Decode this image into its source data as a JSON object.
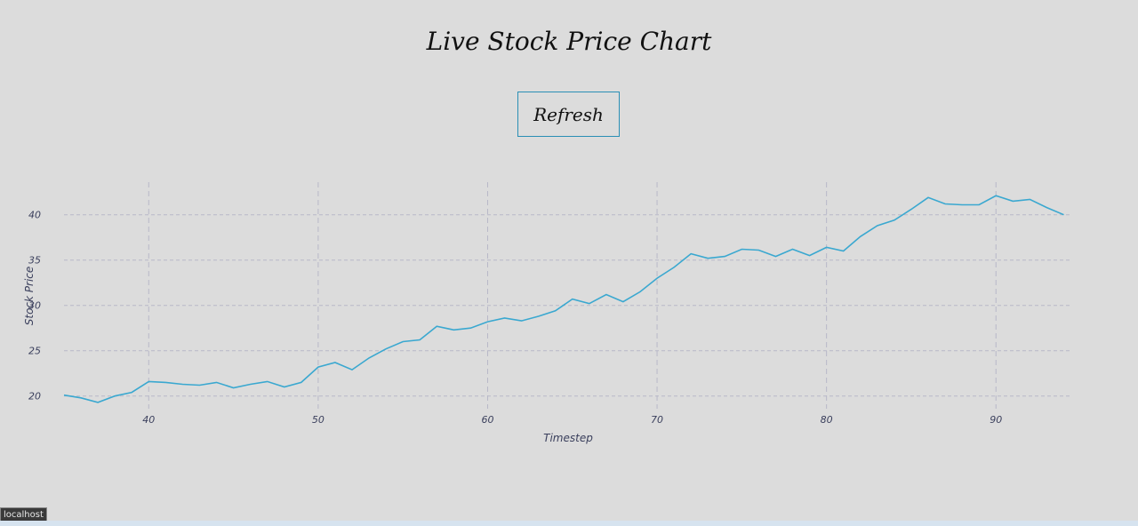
{
  "page": {
    "title": "Live Stock Price Chart",
    "refresh_label": "Refresh"
  },
  "status_bar": {
    "url_tooltip": "localhost"
  },
  "colors": {
    "line": "#3aa8d0",
    "grid": "#b8b8c8",
    "axis_text": "#3a3f5c",
    "button_border": "#2a8fb5"
  },
  "chart_data": {
    "type": "line",
    "title": "",
    "xlabel": "Timestep",
    "ylabel": "Stock Price",
    "xlim": [
      35,
      94.5
    ],
    "ylim": [
      18.6,
      43.6
    ],
    "x_ticks": [
      40,
      50,
      60,
      70,
      80,
      90
    ],
    "y_ticks": [
      20,
      25,
      30,
      35,
      40
    ],
    "grid": true,
    "series": [
      {
        "x": [
          35,
          36,
          37,
          38,
          39,
          40,
          41,
          42,
          43,
          44,
          45,
          46,
          47,
          48,
          49,
          50,
          51,
          52,
          53,
          54,
          55,
          56,
          57,
          58,
          59,
          60,
          61,
          62,
          63,
          64,
          65,
          66,
          67,
          68,
          69,
          70,
          71,
          72,
          73,
          74,
          75,
          76,
          77,
          78,
          79,
          80,
          81,
          82,
          83,
          84,
          85,
          86,
          87,
          88,
          89,
          90,
          91,
          92,
          93,
          94
        ],
        "values": [
          20.1,
          19.8,
          19.3,
          20.0,
          20.4,
          21.6,
          21.5,
          21.3,
          21.2,
          21.5,
          20.9,
          21.3,
          21.6,
          21.0,
          21.5,
          23.2,
          23.7,
          22.9,
          24.2,
          25.2,
          26.0,
          26.2,
          27.7,
          27.3,
          27.5,
          28.2,
          28.6,
          28.3,
          28.8,
          29.4,
          30.7,
          30.2,
          31.2,
          30.4,
          31.5,
          33.0,
          34.2,
          35.7,
          35.2,
          35.4,
          36.2,
          36.1,
          35.4,
          36.2,
          35.5,
          36.4,
          36.0,
          37.6,
          38.8,
          39.4,
          40.6,
          41.9,
          41.2,
          41.1,
          41.1,
          42.1,
          41.5,
          41.7,
          40.8,
          40.0
        ]
      }
    ]
  }
}
